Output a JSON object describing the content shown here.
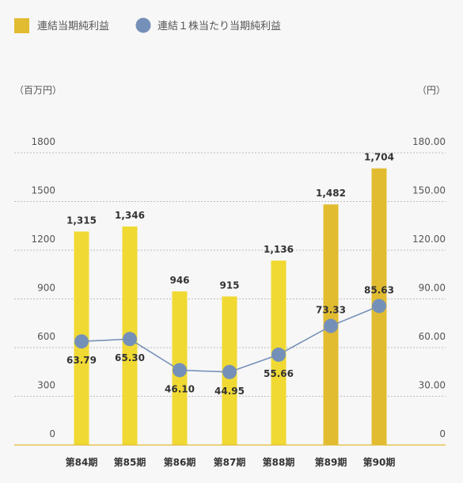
{
  "chart_data": {
    "type": "bar",
    "categories": [
      "第84期",
      "第85期",
      "第86期",
      "第87期",
      "第88期",
      "第89期",
      "第90期"
    ],
    "series": [
      {
        "name": "連結当期純利益",
        "kind": "bar",
        "axis": "left",
        "values": [
          1315,
          1346,
          946,
          915,
          1136,
          1482,
          1704
        ],
        "value_labels": [
          "1,315",
          "1,346",
          "946",
          "915",
          "1,136",
          "1,482",
          "1,704"
        ],
        "colors": [
          "#f0d932",
          "#f0d932",
          "#f0d932",
          "#f0d932",
          "#f0d932",
          "#e2bc30",
          "#e2bc30"
        ]
      },
      {
        "name": "連結１株当たり当期純利益",
        "kind": "line",
        "axis": "right",
        "values": [
          63.79,
          65.3,
          46.1,
          44.95,
          55.66,
          73.33,
          85.63
        ],
        "value_labels": [
          "63.79",
          "65.30",
          "46.10",
          "44.95",
          "55.66",
          "73.33",
          "85.63"
        ],
        "color": "#7590b8"
      }
    ],
    "left_axis": {
      "unit": "（百万円）",
      "ticks": [
        0,
        300,
        600,
        900,
        1200,
        1500,
        1800
      ],
      "tick_labels": [
        "0",
        "300",
        "600",
        "900",
        "1200",
        "1500",
        "1800"
      ],
      "range": [
        0,
        1800
      ]
    },
    "right_axis": {
      "unit": "（円）",
      "ticks": [
        0,
        30,
        60,
        90,
        120,
        150,
        180
      ],
      "tick_labels": [
        "0",
        "30.00",
        "60.00",
        "90.00",
        "120.00",
        "150.00",
        "180.00"
      ],
      "range": [
        0,
        180
      ]
    },
    "grid": true,
    "legend_position": "top-left"
  },
  "colors": {
    "bar": "#f0d932",
    "bar_recent": "#e2bc30",
    "line": "#7590b8",
    "grid": "#bbbbbb",
    "baseline": "#e2bc30"
  }
}
